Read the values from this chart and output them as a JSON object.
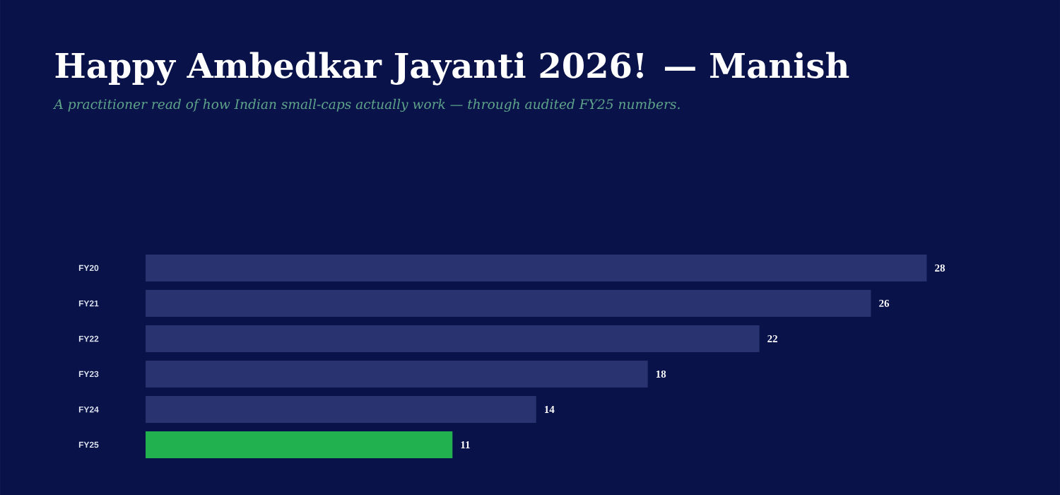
{
  "chart_data": {
    "type": "bar",
    "orientation": "horizontal",
    "title": "Happy Ambedkar Jayanti 2026! — Manish",
    "subtitle": "A practitioner read of how Indian small-caps actually work — through audited FY25 numbers.",
    "categories": [
      "FY20",
      "FY21",
      "FY22",
      "FY23",
      "FY24",
      "FY25"
    ],
    "values": [
      28,
      26,
      22,
      18,
      14,
      11
    ],
    "colors": [
      "#283370",
      "#283370",
      "#283370",
      "#283370",
      "#283370",
      "#22b14f"
    ],
    "data_labels": true
  }
}
